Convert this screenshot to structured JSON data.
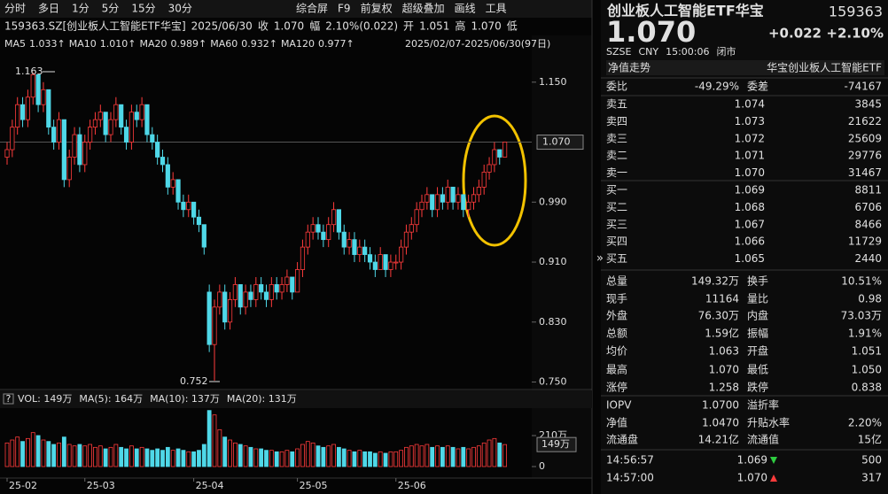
{
  "toolbar": {
    "tabs": [
      "分时",
      "多日",
      "1分",
      "5分",
      "15分",
      "30分"
    ],
    "tools": [
      "综合屏",
      "F9",
      "前复权",
      "超级叠加",
      "画线",
      "工具"
    ]
  },
  "quote_line": [
    {
      "text": "159363.SZ[创业板人工智能ETF华宝]",
      "color": "#e6e6e6"
    },
    {
      "text": "2025/06/30",
      "color": "#e6e6e6"
    },
    {
      "text": "收",
      "color": "#e6e6e6"
    },
    {
      "text": "1.070",
      "color": "#ff3b3b"
    },
    {
      "text": "幅",
      "color": "#e6e6e6"
    },
    {
      "text": "2.10%(0.022)",
      "color": "#ff3b3b"
    },
    {
      "text": "开",
      "color": "#e6e6e6"
    },
    {
      "text": "1.051",
      "color": "#ff3b3b"
    },
    {
      "text": "高",
      "color": "#e6e6e6"
    },
    {
      "text": "1.070",
      "color": "#ff3b3b"
    },
    {
      "text": "低",
      "color": "#e6e6e6"
    }
  ],
  "ma_line": [
    {
      "text": "MA5",
      "color": "#e6e6e6"
    },
    {
      "text": "1.033↑",
      "color": "#e6e6e6"
    },
    {
      "text": "MA10",
      "color": "#e6e6e6"
    },
    {
      "text": "1.010↑",
      "color": "#f2d21b"
    },
    {
      "text": "MA20",
      "color": "#e6e6e6"
    },
    {
      "text": "0.989↑",
      "color": "#e040e0"
    },
    {
      "text": "MA60",
      "color": "#e6e6e6"
    },
    {
      "text": "0.932↑",
      "color": "#3fcf3f"
    },
    {
      "text": "MA120",
      "color": "#e6e6e6"
    },
    {
      "text": "0.977↑",
      "color": "#6fb8ff"
    }
  ],
  "range": "2025/02/07-2025/06/30(97日)",
  "price_chart": {
    "type": "candlestick",
    "categories": [
      "25-02",
      null,
      null,
      null,
      null,
      null,
      null,
      null,
      null,
      null,
      null,
      null,
      null,
      null,
      null,
      "25-03",
      null,
      null,
      null,
      null,
      null,
      null,
      null,
      null,
      null,
      null,
      null,
      null,
      null,
      null,
      null,
      null,
      null,
      null,
      null,
      null,
      "25-04",
      null,
      null,
      null,
      null,
      null,
      null,
      null,
      null,
      null,
      null,
      null,
      null,
      null,
      null,
      null,
      null,
      null,
      null,
      null,
      "25-05",
      null,
      null,
      null,
      null,
      null,
      null,
      null,
      null,
      null,
      null,
      null,
      null,
      null,
      null,
      null,
      null,
      null,
      null,
      "25-06",
      null,
      null,
      null,
      null,
      null,
      null,
      null,
      null,
      null,
      null,
      null,
      null,
      null,
      null,
      null,
      null,
      null,
      null,
      null,
      null,
      null
    ],
    "candles": [
      [
        1.05,
        1.07,
        1.04,
        1.06
      ],
      [
        1.06,
        1.1,
        1.05,
        1.09
      ],
      [
        1.09,
        1.13,
        1.08,
        1.12
      ],
      [
        1.12,
        1.13,
        1.09,
        1.1
      ],
      [
        1.1,
        1.14,
        1.09,
        1.13
      ],
      [
        1.13,
        1.163,
        1.12,
        1.16
      ],
      [
        1.16,
        1.16,
        1.11,
        1.12
      ],
      [
        1.12,
        1.15,
        1.11,
        1.14
      ],
      [
        1.14,
        1.14,
        1.08,
        1.09
      ],
      [
        1.09,
        1.1,
        1.06,
        1.07
      ],
      [
        1.07,
        1.11,
        1.06,
        1.1
      ],
      [
        1.1,
        1.1,
        1.01,
        1.02
      ],
      [
        1.02,
        1.06,
        1.01,
        1.05
      ],
      [
        1.05,
        1.09,
        1.04,
        1.08
      ],
      [
        1.08,
        1.09,
        1.03,
        1.04
      ],
      [
        1.04,
        1.08,
        1.03,
        1.07
      ],
      [
        1.07,
        1.1,
        1.06,
        1.09
      ],
      [
        1.09,
        1.11,
        1.08,
        1.1
      ],
      [
        1.1,
        1.12,
        1.09,
        1.11
      ],
      [
        1.11,
        1.11,
        1.07,
        1.08
      ],
      [
        1.08,
        1.11,
        1.07,
        1.1
      ],
      [
        1.1,
        1.13,
        1.09,
        1.12
      ],
      [
        1.12,
        1.12,
        1.08,
        1.09
      ],
      [
        1.09,
        1.1,
        1.06,
        1.07
      ],
      [
        1.07,
        1.12,
        1.06,
        1.11
      ],
      [
        1.11,
        1.12,
        1.09,
        1.1
      ],
      [
        1.1,
        1.13,
        1.09,
        1.12
      ],
      [
        1.12,
        1.12,
        1.07,
        1.08
      ],
      [
        1.08,
        1.09,
        1.06,
        1.07
      ],
      [
        1.07,
        1.08,
        1.04,
        1.05
      ],
      [
        1.05,
        1.06,
        1.03,
        1.04
      ],
      [
        1.04,
        1.05,
        1.0,
        1.01
      ],
      [
        1.01,
        1.03,
        1.0,
        1.02
      ],
      [
        1.02,
        1.02,
        0.98,
        0.99
      ],
      [
        0.99,
        1.0,
        0.97,
        0.98
      ],
      [
        0.98,
        1.0,
        0.97,
        0.99
      ],
      [
        0.99,
        0.99,
        0.96,
        0.97
      ],
      [
        0.97,
        0.98,
        0.95,
        0.96
      ],
      [
        0.96,
        0.96,
        0.92,
        0.93
      ],
      [
        0.87,
        0.88,
        0.79,
        0.8
      ],
      [
        0.8,
        0.86,
        0.752,
        0.85
      ],
      [
        0.85,
        0.88,
        0.84,
        0.87
      ],
      [
        0.87,
        0.88,
        0.82,
        0.83
      ],
      [
        0.83,
        0.87,
        0.82,
        0.86
      ],
      [
        0.86,
        0.89,
        0.85,
        0.88
      ],
      [
        0.88,
        0.88,
        0.84,
        0.85
      ],
      [
        0.85,
        0.88,
        0.84,
        0.87
      ],
      [
        0.87,
        0.88,
        0.85,
        0.86
      ],
      [
        0.86,
        0.89,
        0.85,
        0.88
      ],
      [
        0.88,
        0.89,
        0.86,
        0.87
      ],
      [
        0.87,
        0.88,
        0.85,
        0.86
      ],
      [
        0.86,
        0.89,
        0.85,
        0.88
      ],
      [
        0.88,
        0.89,
        0.86,
        0.87
      ],
      [
        0.87,
        0.89,
        0.86,
        0.88
      ],
      [
        0.88,
        0.9,
        0.87,
        0.89
      ],
      [
        0.89,
        0.89,
        0.86,
        0.87
      ],
      [
        0.87,
        0.91,
        0.87,
        0.9
      ],
      [
        0.9,
        0.94,
        0.89,
        0.93
      ],
      [
        0.93,
        0.96,
        0.92,
        0.95
      ],
      [
        0.95,
        0.97,
        0.94,
        0.96
      ],
      [
        0.96,
        0.97,
        0.94,
        0.95
      ],
      [
        0.95,
        0.96,
        0.93,
        0.94
      ],
      [
        0.94,
        0.97,
        0.93,
        0.96
      ],
      [
        0.96,
        0.99,
        0.95,
        0.98
      ],
      [
        0.98,
        0.98,
        0.94,
        0.95
      ],
      [
        0.95,
        0.96,
        0.92,
        0.93
      ],
      [
        0.93,
        0.95,
        0.92,
        0.94
      ],
      [
        0.94,
        0.95,
        0.91,
        0.92
      ],
      [
        0.92,
        0.94,
        0.91,
        0.93
      ],
      [
        0.93,
        0.94,
        0.91,
        0.92
      ],
      [
        0.92,
        0.93,
        0.9,
        0.91
      ],
      [
        0.91,
        0.92,
        0.89,
        0.9
      ],
      [
        0.9,
        0.93,
        0.9,
        0.92
      ],
      [
        0.92,
        0.92,
        0.89,
        0.9
      ],
      [
        0.9,
        0.92,
        0.89,
        0.91
      ],
      [
        0.91,
        0.92,
        0.9,
        0.91
      ],
      [
        0.91,
        0.94,
        0.9,
        0.93
      ],
      [
        0.93,
        0.96,
        0.92,
        0.95
      ],
      [
        0.95,
        0.97,
        0.94,
        0.96
      ],
      [
        0.96,
        0.99,
        0.95,
        0.98
      ],
      [
        0.98,
        1.0,
        0.97,
        0.99
      ],
      [
        0.99,
        1.01,
        0.98,
        1.0
      ],
      [
        1.0,
        1.0,
        0.97,
        0.98
      ],
      [
        0.98,
        1.01,
        0.97,
        1.0
      ],
      [
        1.0,
        1.01,
        0.98,
        0.99
      ],
      [
        0.99,
        1.02,
        0.98,
        1.01
      ],
      [
        1.01,
        1.01,
        0.98,
        0.99
      ],
      [
        0.99,
        1.01,
        0.98,
        1.0
      ],
      [
        1.0,
        1.0,
        0.97,
        0.98
      ],
      [
        0.98,
        1.0,
        0.97,
        0.99
      ],
      [
        0.99,
        1.01,
        0.98,
        1.0
      ],
      [
        1.0,
        1.02,
        0.99,
        1.01
      ],
      [
        1.01,
        1.04,
        1.0,
        1.03
      ],
      [
        1.03,
        1.05,
        1.02,
        1.04
      ],
      [
        1.04,
        1.07,
        1.03,
        1.06
      ],
      [
        1.06,
        1.06,
        1.04,
        1.05
      ],
      [
        1.05,
        1.07,
        1.05,
        1.07
      ]
    ],
    "ylim": [
      0.74,
      1.21
    ],
    "yticks": [
      {
        "value": 1.15,
        "label": "1.150"
      },
      {
        "value": 0.99,
        "label": "0.990"
      },
      {
        "value": 0.91,
        "label": "0.910"
      },
      {
        "value": 0.83,
        "label": "0.830"
      },
      {
        "value": 0.75,
        "label": "0.750"
      }
    ],
    "current": {
      "value": 1.07,
      "label": "1.070"
    },
    "high_label": "1.163",
    "low_label": "0.752",
    "up_color": "#ff3b3b",
    "down_color": "#4fd8e8"
  },
  "volume_chart": {
    "type": "bar",
    "header": [
      {
        "text": "VOL: 149万",
        "color": "#e6e6e6"
      },
      {
        "text": "MA(5): 164万",
        "color": "#e6e6e6"
      },
      {
        "text": "MA(10): 137万",
        "color": "#f2c21b"
      },
      {
        "text": "MA(20): 131万",
        "color": "#e040e0"
      }
    ],
    "values": [
      160,
      180,
      200,
      170,
      190,
      230,
      210,
      180,
      170,
      150,
      160,
      200,
      150,
      140,
      150,
      140,
      150,
      130,
      140,
      120,
      130,
      150,
      130,
      120,
      140,
      120,
      130,
      120,
      110,
      120,
      110,
      130,
      110,
      120,
      110,
      100,
      100,
      110,
      150,
      380,
      350,
      250,
      200,
      180,
      160,
      150,
      140,
      130,
      120,
      120,
      110,
      110,
      100,
      100,
      110,
      100,
      120,
      150,
      170,
      160,
      140,
      130,
      140,
      150,
      130,
      120,
      110,
      100,
      110,
      100,
      100,
      90,
      100,
      90,
      100,
      100,
      110,
      130,
      140,
      150,
      140,
      150,
      130,
      140,
      130,
      140,
      130,
      120,
      130,
      120,
      130,
      140,
      160,
      180,
      190,
      160,
      149
    ],
    "ylim": [
      0,
      390
    ],
    "yticks": [
      {
        "value": 210,
        "label": "210万"
      },
      0
    ],
    "current": {
      "value": 149,
      "label": "149万"
    }
  },
  "quote": {
    "name": "创业板人工智能ETF华宝",
    "code": "159363",
    "price": "1.070",
    "change": "+0.022",
    "change_pct": "+2.10%",
    "meta": [
      "SZSE",
      "CNY",
      "15:00:06",
      "闭市"
    ]
  },
  "panel_tabs": {
    "left": "净值走势",
    "right": "华宝创业板人工智能ETF"
  },
  "order_ratio": {
    "cells": [
      "委比",
      "-49.29%",
      "委差",
      "-74167"
    ],
    "colors": [
      "#2ecc40",
      "#2ecc40"
    ]
  },
  "asks": [
    [
      "卖五",
      "1.074",
      "3845"
    ],
    [
      "卖四",
      "1.073",
      "21622"
    ],
    [
      "卖三",
      "1.072",
      "25609"
    ],
    [
      "卖二",
      "1.071",
      "29776"
    ],
    [
      "卖一",
      "1.070",
      "31467"
    ]
  ],
  "bids": [
    [
      "买一",
      "1.069",
      "8811"
    ],
    [
      "买二",
      "1.068",
      "6706"
    ],
    [
      "买三",
      "1.067",
      "8466"
    ],
    [
      "买四",
      "1.066",
      "11729"
    ],
    [
      "买五",
      "1.065",
      "2440"
    ]
  ],
  "book_price_color": "#ff3b3b",
  "stats": [
    {
      "cells": [
        "总量",
        "149.32万",
        "换手",
        "10.51%"
      ],
      "colors": [
        "#e0e0e0",
        "#e0e0e0"
      ]
    },
    {
      "cells": [
        "现手",
        "11164",
        "量比",
        "0.98"
      ],
      "colors": [
        "#e0e0e0",
        "#e0e0e0"
      ]
    },
    {
      "cells": [
        "外盘",
        "76.30万",
        "内盘",
        "73.03万"
      ],
      "colors": [
        "#ff3b3b",
        "#2ecc40"
      ]
    },
    {
      "cells": [
        "总额",
        "1.59亿",
        "振幅",
        "1.91%"
      ],
      "colors": [
        "#e0e0e0",
        "#e0e0e0"
      ]
    },
    {
      "cells": [
        "均价",
        "1.063",
        "开盘",
        "1.051"
      ],
      "colors": [
        "#ff3b3b",
        "#ff3b3b"
      ]
    },
    {
      "cells": [
        "最高",
        "1.070",
        "最低",
        "1.050"
      ],
      "colors": [
        "#ff3b3b",
        "#ff3b3b"
      ]
    },
    {
      "cells": [
        "涨停",
        "1.258",
        "跌停",
        "0.838"
      ],
      "colors": [
        "#ff3b3b",
        "#2ecc40"
      ]
    },
    {
      "cells": [
        "IOPV",
        "1.0700",
        "溢折率",
        ""
      ],
      "colors": [
        "#e0e0e0",
        "#e0e0e0"
      ]
    },
    {
      "cells": [
        "净值",
        "1.0470",
        "升贴水率",
        "2.20%"
      ],
      "colors": [
        "#ff3b3b",
        "#ff3b3b"
      ]
    },
    {
      "cells": [
        "流通盘",
        "14.21亿",
        "流通值",
        "15亿"
      ],
      "colors": [
        "#e0e0e0",
        "#e0e0e0"
      ]
    }
  ],
  "trades": [
    {
      "time": "14:56:57",
      "price": "1.069",
      "volume": "500",
      "direction": "down"
    },
    {
      "time": "14:57:00",
      "price": "1.070",
      "volume": "317",
      "direction": "up"
    }
  ]
}
